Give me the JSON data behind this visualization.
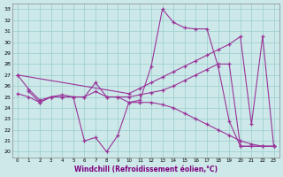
{
  "xlabel": "Windchill (Refroidissement éolien,°C)",
  "background_color": "#cce8e8",
  "grid_color": "#99cccc",
  "line_color": "#993399",
  "xlim": [
    -0.5,
    23.5
  ],
  "ylim": [
    19.5,
    33.5
  ],
  "yticks": [
    20,
    21,
    22,
    23,
    24,
    25,
    26,
    27,
    28,
    29,
    30,
    31,
    32,
    33
  ],
  "xticks": [
    0,
    1,
    2,
    3,
    4,
    5,
    6,
    7,
    8,
    9,
    10,
    11,
    12,
    13,
    14,
    15,
    16,
    17,
    18,
    19,
    20,
    21,
    22,
    23
  ],
  "series": [
    {
      "x": [
        0,
        1,
        2,
        3,
        4,
        5,
        6,
        7,
        8,
        9,
        10,
        11,
        12,
        13,
        14,
        15,
        16,
        17,
        18,
        19,
        20,
        23
      ],
      "y": [
        27.0,
        25.7,
        24.7,
        25.0,
        25.2,
        25.0,
        21.0,
        21.3,
        20.0,
        21.5,
        24.5,
        24.7,
        27.8,
        33.0,
        31.8,
        31.3,
        31.2,
        31.2,
        27.8,
        22.8,
        20.5,
        20.5
      ]
    },
    {
      "x": [
        0,
        10,
        11,
        12,
        13,
        14,
        15,
        16,
        17,
        18,
        19,
        20,
        21,
        22,
        23
      ],
      "y": [
        27.0,
        25.3,
        25.8,
        26.3,
        26.8,
        27.3,
        27.8,
        28.3,
        28.8,
        29.3,
        29.8,
        30.5,
        22.5,
        30.5,
        20.5
      ]
    },
    {
      "x": [
        0,
        1,
        2,
        3,
        4,
        5,
        6,
        7,
        8,
        9,
        10,
        11,
        12,
        13,
        14,
        15,
        16,
        17,
        18,
        19,
        20,
        21,
        22,
        23
      ],
      "y": [
        25.3,
        25.0,
        24.5,
        25.0,
        25.0,
        25.0,
        25.0,
        25.5,
        25.0,
        25.0,
        25.0,
        25.2,
        25.4,
        25.6,
        26.0,
        26.5,
        27.0,
        27.5,
        28.0,
        28.0,
        20.5,
        20.5,
        20.5,
        20.5
      ]
    },
    {
      "x": [
        1,
        2,
        3,
        4,
        5,
        6,
        7,
        8,
        9,
        10,
        11,
        12,
        13,
        14,
        15,
        16,
        17,
        18,
        19,
        20,
        21,
        22,
        23
      ],
      "y": [
        25.5,
        24.5,
        25.0,
        25.0,
        25.0,
        25.0,
        26.3,
        25.0,
        25.0,
        24.5,
        24.5,
        24.5,
        24.3,
        24.0,
        23.5,
        23.0,
        22.5,
        22.0,
        21.5,
        21.0,
        20.7,
        20.5,
        20.5
      ]
    }
  ]
}
